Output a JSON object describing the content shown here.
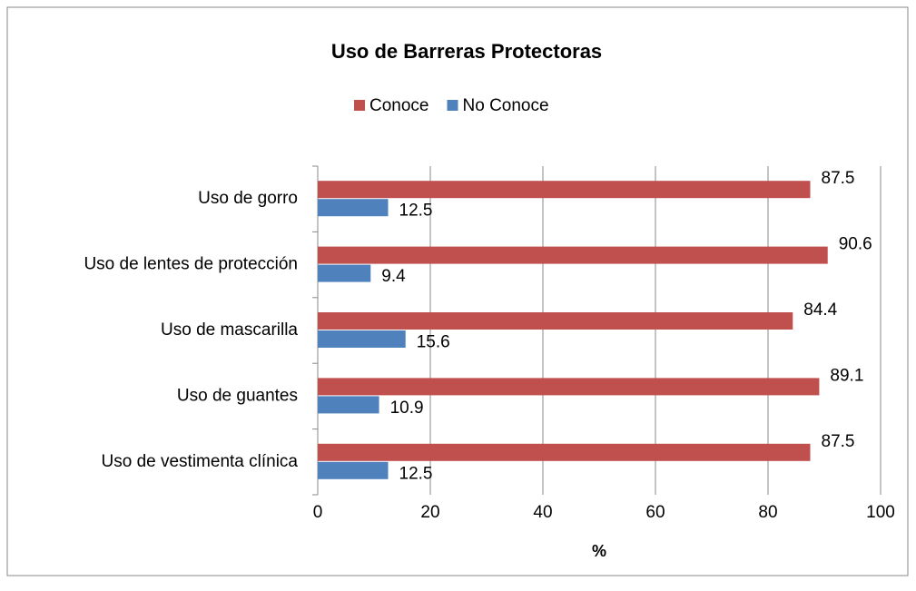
{
  "chart_data": {
    "type": "bar",
    "orientation": "horizontal",
    "title": "Uso de Barreras Protectoras",
    "categories": [
      "Uso de gorro",
      "Uso de lentes de protección",
      "Uso de mascarilla",
      "Uso de guantes",
      "Uso de vestimenta clínica"
    ],
    "series": [
      {
        "name": "Conoce",
        "color": "#c0504d",
        "values": [
          87.5,
          90.6,
          84.4,
          89.1,
          87.5
        ]
      },
      {
        "name": "No Conoce",
        "color": "#4f81bd",
        "values": [
          12.5,
          9.4,
          15.6,
          10.9,
          12.5
        ]
      }
    ],
    "xlabel": "%",
    "xlim": [
      0,
      100
    ],
    "xticks": [
      0,
      20,
      40,
      60,
      80,
      100
    ],
    "grid": true,
    "legend": "top"
  }
}
